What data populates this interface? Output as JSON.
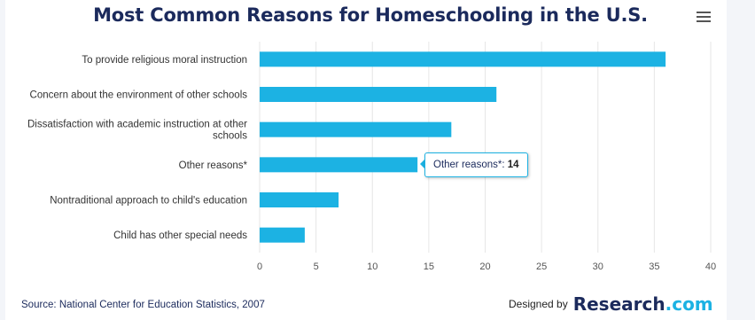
{
  "chart_data": {
    "type": "bar",
    "orientation": "horizontal",
    "title": "Most Common Reasons for Homeschooling in the U.S.",
    "categories": [
      [
        "To provide religious moral instruction"
      ],
      [
        "Concern about the environment of other schools"
      ],
      [
        "Dissatisfaction with academic instruction at other",
        "schools"
      ],
      [
        "Other reasons*"
      ],
      [
        "Nontraditional approach to child's education"
      ],
      [
        "Child has other special needs"
      ]
    ],
    "values": [
      36,
      21,
      17,
      14,
      7,
      4
    ],
    "xlim": [
      0,
      40
    ],
    "xticks": [
      0,
      5,
      10,
      15,
      20,
      25,
      30,
      35,
      40
    ],
    "grid": true,
    "bar_color": "#1cb2e3"
  },
  "tooltip": {
    "label": "Other reasons*: ",
    "value": "14"
  },
  "menu": {
    "icon": "hamburger-menu-icon"
  },
  "footer": {
    "source": "Source: National Center for Education Statistics, 2007",
    "credit_prefix": "Designed by",
    "brand": "Research",
    "brand_suffix": ".com"
  },
  "colors": {
    "accent": "#1cb2e3",
    "title": "#1b2a5c"
  }
}
